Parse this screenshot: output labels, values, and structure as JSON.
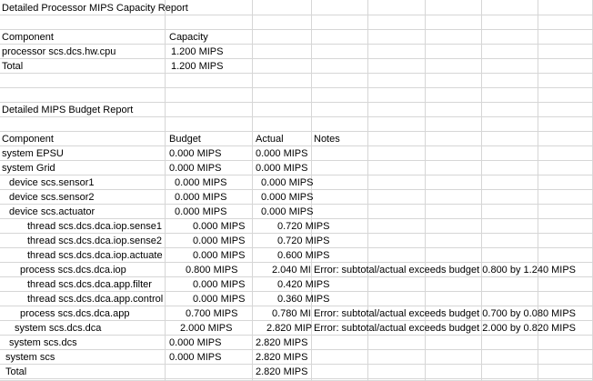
{
  "sheet": {
    "rows": [
      {
        "a": "Detailed Processor MIPS Capacity Report",
        "b": "",
        "c": "",
        "d": ""
      },
      {
        "a": "",
        "b": "",
        "c": "",
        "d": ""
      },
      {
        "a": "Component",
        "b": "Capacity",
        "c": "",
        "d": ""
      },
      {
        "a": "processor scs.dcs.hw.cpu",
        "b": "1.200 MIPS",
        "c": "",
        "d": ""
      },
      {
        "a": "Total",
        "b": "1.200 MIPS",
        "c": "",
        "d": ""
      },
      {
        "a": "",
        "b": "",
        "c": "",
        "d": ""
      },
      {
        "a": "",
        "b": "",
        "c": "",
        "d": ""
      },
      {
        "a": "Detailed MIPS Budget Report",
        "b": "",
        "c": "",
        "d": ""
      },
      {
        "a": "",
        "b": "",
        "c": "",
        "d": ""
      },
      {
        "a": "Component",
        "b": "Budget",
        "c": "Actual",
        "d": "Notes"
      },
      {
        "a": "system EPSU",
        "b": "0.000 MIPS",
        "c": "0.000 MIPS",
        "d": ""
      },
      {
        "a": "system Grid",
        "b": "0.000 MIPS",
        "c": "0.000 MIPS",
        "d": ""
      },
      {
        "a": "device scs.sensor1",
        "b": "0.000 MIPS",
        "c": "0.000 MIPS",
        "d": ""
      },
      {
        "a": "device scs.sensor2",
        "b": "0.000 MIPS",
        "c": "0.000 MIPS",
        "d": ""
      },
      {
        "a": "device scs.actuator",
        "b": "0.000 MIPS",
        "c": "0.000 MIPS",
        "d": ""
      },
      {
        "a": "thread scs.dcs.dca.iop.sense1",
        "b": "0.000 MIPS",
        "c": "0.720 MIPS",
        "d": ""
      },
      {
        "a": "thread scs.dcs.dca.iop.sense2",
        "b": "0.000 MIPS",
        "c": "0.720 MIPS",
        "d": ""
      },
      {
        "a": "thread scs.dcs.dca.iop.actuate",
        "b": "0.000 MIPS",
        "c": "0.600 MIPS",
        "d": ""
      },
      {
        "a": "process scs.dcs.dca.iop",
        "b": "0.800 MIPS",
        "c": "2.040 MI",
        "d": "Error: subtotal/actual exceeds budget 0.800 by 1.240 MIPS"
      },
      {
        "a": "thread scs.dcs.dca.app.filter",
        "b": "0.000 MIPS",
        "c": "0.420 MIPS",
        "d": ""
      },
      {
        "a": "thread scs.dcs.dca.app.control",
        "b": "0.000 MIPS",
        "c": "0.360 MIPS",
        "d": ""
      },
      {
        "a": "process scs.dcs.dca.app",
        "b": "0.700 MIPS",
        "c": "0.780 MI",
        "d": "Error: subtotal/actual exceeds budget 0.700 by 0.080 MIPS"
      },
      {
        "a": "system scs.dcs.dca",
        "b": "2.000 MIPS",
        "c": "2.820 MIP",
        "d": "Error: subtotal/actual exceeds budget 2.000 by 0.820 MIPS"
      },
      {
        "a": "system scs.dcs",
        "b": "0.000 MIPS",
        "c": "2.820 MIPS",
        "d": ""
      },
      {
        "a": "system scs",
        "b": "0.000 MIPS",
        "c": "2.820 MIPS",
        "d": ""
      },
      {
        "a": "Total",
        "b": "",
        "c": "2.820 MIPS",
        "d": ""
      }
    ]
  }
}
